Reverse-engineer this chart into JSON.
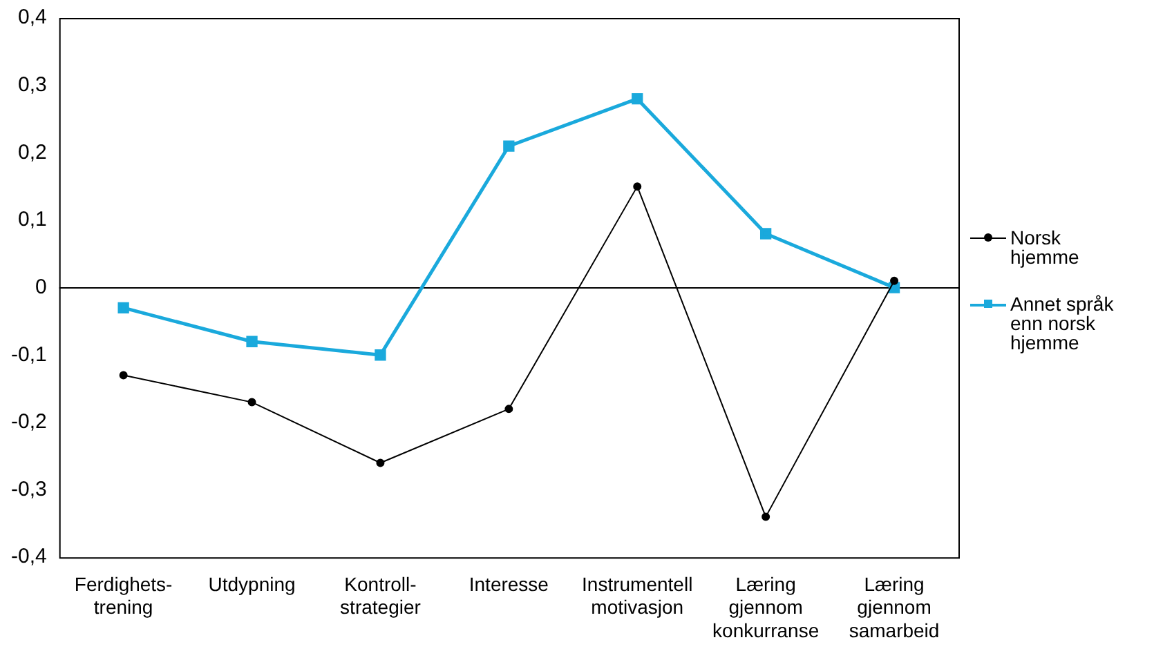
{
  "chart_data": {
    "type": "line",
    "categories": [
      "Ferdighets-\ntrening",
      "Utdypning",
      "Kontroll-\nstrategier",
      "Interesse",
      "Instrumentell\nmotivasjon",
      "Læring\ngjennom\nkonkurranse",
      "Læring\ngjennom\nsamarbeid"
    ],
    "series": [
      {
        "name": "Norsk hjemme",
        "color": "#000000",
        "marker": "circle",
        "values": [
          -0.13,
          -0.17,
          -0.26,
          -0.18,
          0.15,
          -0.34,
          0.01
        ]
      },
      {
        "name": "Annet språk enn norsk hjemme",
        "color": "#1aa9dc",
        "marker": "square",
        "values": [
          -0.03,
          -0.08,
          -0.1,
          0.21,
          0.28,
          0.08,
          0
        ]
      }
    ],
    "ylim": [
      -0.4,
      0.4
    ],
    "yticks": [
      {
        "value": -0.4,
        "label": "-0,4"
      },
      {
        "value": -0.3,
        "label": "-0,3"
      },
      {
        "value": -0.2,
        "label": "-0,2"
      },
      {
        "value": -0.1,
        "label": "-0,1"
      },
      0,
      {
        "value": 0.1,
        "label": "0,1"
      },
      {
        "value": 0.2,
        "label": "0,2"
      },
      {
        "value": 0.3,
        "label": "0,3"
      },
      {
        "value": 0.4,
        "label": "0,4"
      }
    ],
    "ref_lines": [
      {
        "axis": "y",
        "value": 0,
        "color": "#000000"
      }
    ],
    "grid": false,
    "legend": "right"
  }
}
